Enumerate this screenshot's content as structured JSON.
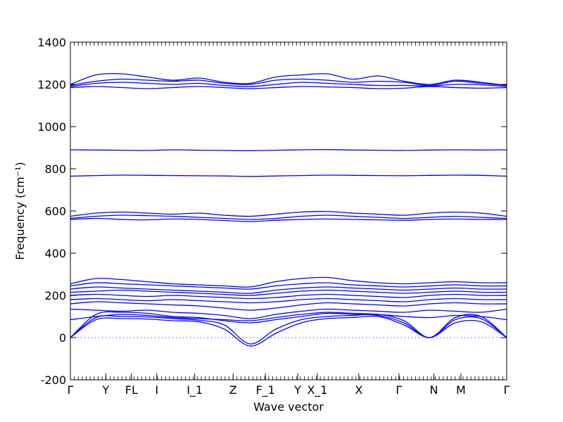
{
  "chart_data": {
    "type": "line",
    "title": "",
    "xlabel": "Wave vector",
    "ylabel": "Frequency (cm⁻¹)",
    "ylim": [
      -200,
      1400
    ],
    "grid": false,
    "legend": "none",
    "line_color": "#0000ff",
    "y_ticks": [
      -200,
      0,
      200,
      400,
      600,
      800,
      1000,
      1200,
      1400
    ],
    "x_ticks": [
      {
        "label": "Γ",
        "x": 0
      },
      {
        "label": "Y",
        "x": 0.081
      },
      {
        "label": "FL",
        "x": 0.14
      },
      {
        "label": "I",
        "x": 0.198
      },
      {
        "label": "I_1",
        "x": 0.285
      },
      {
        "label": "Z",
        "x": 0.373
      },
      {
        "label": "F_1",
        "x": 0.447
      },
      {
        "label": "Y",
        "x": 0.521
      },
      {
        "label": "X_1",
        "x": 0.566
      },
      {
        "label": "X",
        "x": 0.661
      },
      {
        "label": "Γ",
        "x": 0.753
      },
      {
        "label": "N",
        "x": 0.833
      },
      {
        "label": "M",
        "x": 0.895
      },
      {
        "label": "Γ",
        "x": 1.0
      }
    ],
    "zero_line": {
      "y": 0,
      "style": "dotted"
    },
    "series": [
      {
        "values": [
          0,
          85,
          90,
          88,
          80,
          75,
          40,
          -40,
          20,
          70,
          90,
          95,
          100,
          60,
          0,
          70,
          75,
          0
        ]
      },
      {
        "values": [
          0,
          95,
          100,
          98,
          90,
          82,
          60,
          -30,
          40,
          85,
          100,
          105,
          110,
          80,
          0,
          85,
          90,
          0
        ]
      },
      {
        "values": [
          0,
          110,
          120,
          115,
          100,
          95,
          80,
          70,
          85,
          100,
          115,
          110,
          105,
          70,
          0,
          95,
          100,
          0
        ]
      },
      {
        "values": [
          85,
          100,
          110,
          105,
          95,
          90,
          85,
          80,
          95,
          110,
          120,
          115,
          110,
          100,
          95,
          105,
          100,
          85
        ]
      },
      {
        "values": [
          135,
          130,
          125,
          130,
          120,
          115,
          105,
          90,
          110,
          125,
          135,
          130,
          125,
          120,
          130,
          125,
          120,
          135
        ]
      },
      {
        "values": [
          160,
          170,
          165,
          160,
          155,
          150,
          140,
          130,
          140,
          155,
          165,
          160,
          155,
          150,
          160,
          165,
          160,
          160
        ]
      },
      {
        "values": [
          180,
          185,
          180,
          175,
          180,
          175,
          170,
          165,
          170,
          180,
          185,
          180,
          175,
          170,
          180,
          185,
          180,
          180
        ]
      },
      {
        "values": [
          200,
          205,
          200,
          195,
          200,
          195,
          190,
          185,
          190,
          200,
          205,
          200,
          195,
          190,
          200,
          205,
          200,
          200
        ]
      },
      {
        "values": [
          215,
          220,
          225,
          220,
          215,
          210,
          205,
          200,
          210,
          220,
          225,
          220,
          215,
          210,
          215,
          220,
          215,
          215
        ]
      },
      {
        "values": [
          230,
          240,
          235,
          230,
          225,
          220,
          215,
          210,
          225,
          235,
          240,
          235,
          230,
          225,
          230,
          235,
          230,
          230
        ]
      },
      {
        "values": [
          245,
          260,
          255,
          250,
          245,
          240,
          235,
          230,
          245,
          255,
          260,
          250,
          245,
          240,
          245,
          250,
          245,
          245
        ]
      },
      {
        "values": [
          255,
          280,
          275,
          265,
          255,
          250,
          245,
          240,
          265,
          280,
          285,
          270,
          260,
          255,
          260,
          265,
          260,
          260
        ]
      },
      {
        "values": [
          560,
          565,
          560,
          558,
          562,
          560,
          555,
          550,
          556,
          560,
          562,
          560,
          558,
          556,
          560,
          562,
          560,
          560
        ]
      },
      {
        "values": [
          565,
          575,
          580,
          578,
          575,
          570,
          565,
          560,
          565,
          575,
          580,
          575,
          570,
          565,
          570,
          575,
          570,
          565
        ]
      },
      {
        "values": [
          575,
          590,
          595,
          590,
          585,
          590,
          580,
          575,
          585,
          595,
          598,
          590,
          585,
          580,
          590,
          595,
          590,
          575
        ]
      },
      {
        "values": [
          765,
          768,
          770,
          769,
          768,
          767,
          766,
          764,
          766,
          768,
          770,
          769,
          768,
          767,
          769,
          770,
          769,
          765
        ]
      },
      {
        "values": [
          890,
          889,
          888,
          887,
          890,
          888,
          887,
          886,
          888,
          890,
          891,
          889,
          888,
          887,
          889,
          890,
          889,
          890
        ]
      },
      {
        "values": [
          1185,
          1190,
          1185,
          1180,
          1185,
          1190,
          1185,
          1180,
          1185,
          1190,
          1188,
          1185,
          1180,
          1182,
          1190,
          1185,
          1182,
          1185
        ]
      },
      {
        "values": [
          1190,
          1205,
          1210,
          1205,
          1200,
          1205,
          1195,
          1190,
          1200,
          1210,
          1205,
          1200,
          1195,
          1195,
          1192,
          1200,
          1198,
          1190
        ]
      },
      {
        "values": [
          1195,
          1215,
          1225,
          1220,
          1215,
          1220,
          1205,
          1200,
          1220,
          1225,
          1220,
          1210,
          1215,
          1210,
          1195,
          1215,
          1205,
          1195
        ]
      },
      {
        "values": [
          1200,
          1245,
          1250,
          1235,
          1220,
          1230,
          1210,
          1205,
          1235,
          1245,
          1250,
          1225,
          1240,
          1215,
          1200,
          1220,
          1210,
          1195
        ]
      }
    ]
  }
}
